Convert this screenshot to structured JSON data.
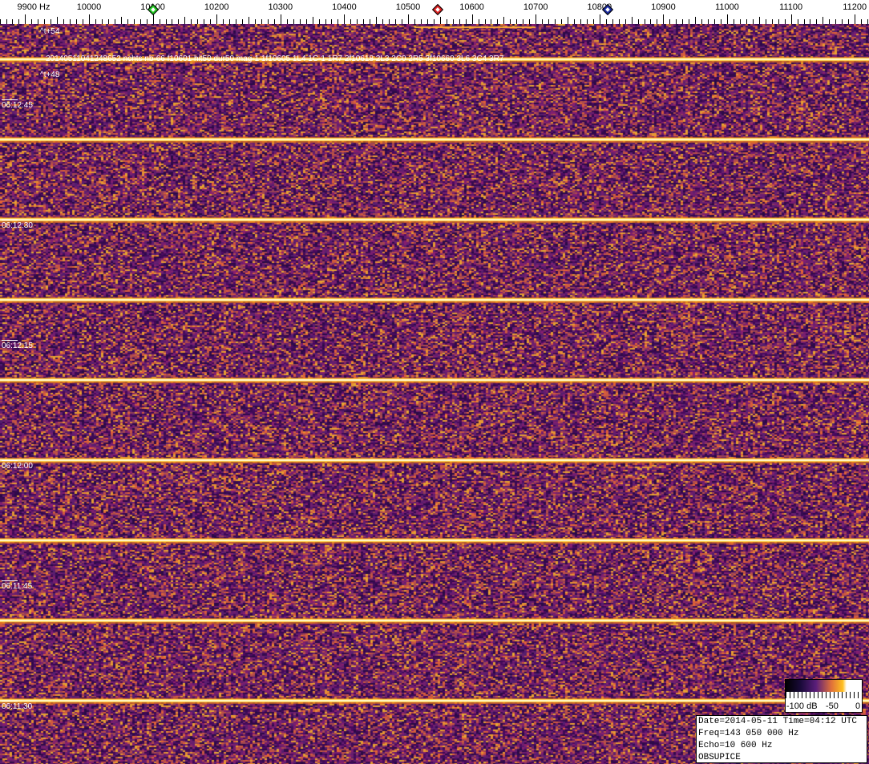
{
  "chart_data": {
    "type": "heatmap",
    "kind": "spectrogram waterfall",
    "x_axis": {
      "unit": "Hz",
      "first_label": "9900 Hz",
      "ticks": [
        10000,
        10100,
        10200,
        10300,
        10400,
        10500,
        10600,
        10700,
        10800,
        10900,
        11000,
        11100,
        11200
      ],
      "range": [
        9850,
        11225
      ]
    },
    "y_axis": {
      "tick_labels": [
        "06:12:45",
        "06:12:30",
        "06:12:15",
        "06:12:00",
        "06:11:45",
        "06:11:30"
      ],
      "direction": "time decreasing downward"
    },
    "markers": [
      {
        "freq": 10100,
        "color": "#22cc22"
      },
      {
        "freq": 10546,
        "color": "#dd2222"
      },
      {
        "freq": 10813,
        "color": "#1a2aa0"
      }
    ],
    "broadband_pulse_times": [
      "06:12:50",
      "06:12:40",
      "06:12:30",
      "06:12:20",
      "06:12:10",
      "06:12:00",
      "06:11:50",
      "06:11:40",
      "06:11:30"
    ],
    "echo_streak": {
      "freq_range": [
        10510,
        10700
      ],
      "time": "06:12:54"
    },
    "annotations": [
      "^t+54",
      "20140511041248652 nchts nb-66 f10601 hit50 dur50 mag-1 1f10605 1L4 1C-1 1R7 2f10618 2L3 2C0 2R5 3f10660 3L6 3C4 3R7",
      "^t+48"
    ],
    "colorbar": {
      "labels": [
        "-100 dB",
        "-50",
        "0"
      ],
      "range": [
        -100,
        0
      ]
    },
    "colors": {
      "background": "#4a2470",
      "noise": "#c0603a",
      "pulse": "#ffd040"
    }
  },
  "info": {
    "line1": "Date=2014-05-11 Time=04:12 UTC",
    "line2": "Freq=143 050 000 Hz",
    "line3": "Echo=10 600 Hz",
    "line4": "OBSUPICE"
  }
}
